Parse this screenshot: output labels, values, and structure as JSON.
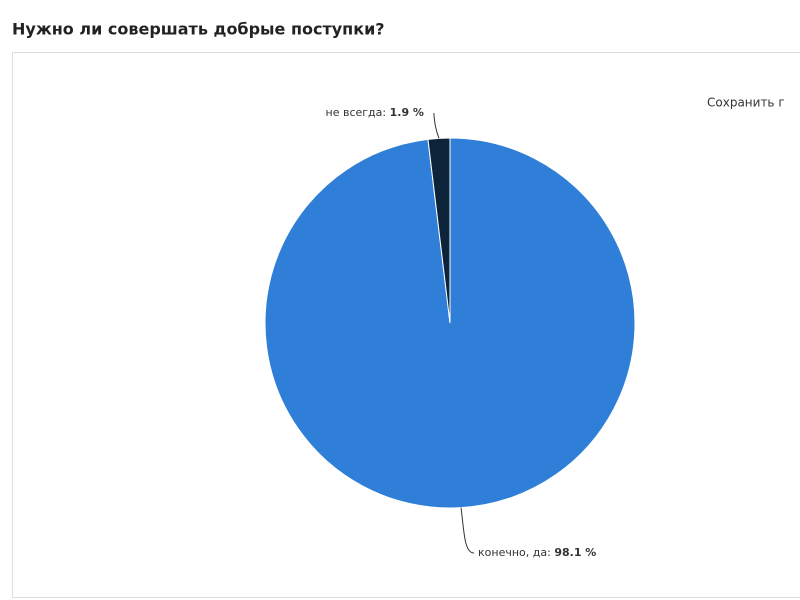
{
  "chart_data": {
    "type": "pie",
    "title": "Нужно ли совершать добрые поступки?",
    "button": "Сохранить г",
    "categories": [
      "конечно, да",
      "не всегда"
    ],
    "values": [
      98.1,
      1.9
    ],
    "value_labels": [
      "98.1 %",
      "1.9 %"
    ],
    "colors": [
      "#2f7ed8",
      "#0d233a"
    ]
  }
}
